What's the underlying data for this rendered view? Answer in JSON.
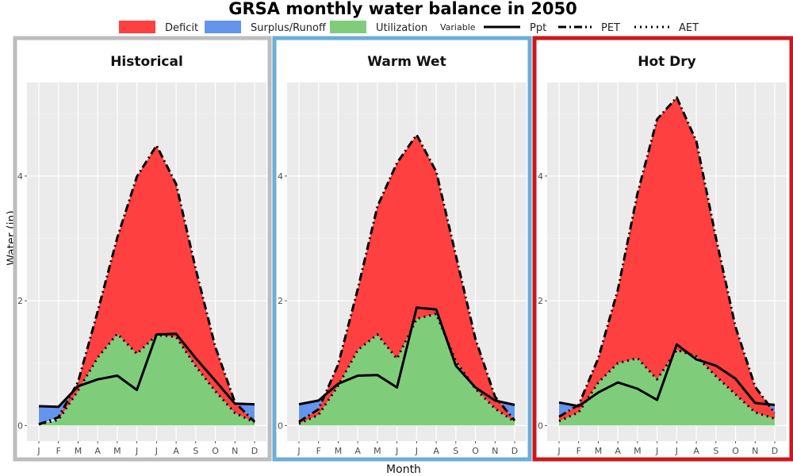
{
  "chart_data": {
    "type": "area",
    "title": "GRSA monthly water balance in 2050",
    "xlabel": "Month",
    "ylabel": "Water (in)",
    "categories": [
      "J",
      "F",
      "M",
      "A",
      "M",
      "J",
      "J",
      "A",
      "S",
      "O",
      "N",
      "D"
    ],
    "y_ticks": [
      "0",
      "2",
      "4"
    ],
    "ylim": [
      -0.25,
      5.5
    ],
    "grid": true,
    "legend": {
      "position": "top",
      "fill_items": [
        {
          "label": "Deficit",
          "color": "#ff4040"
        },
        {
          "label": "Surplus/Runoff",
          "color": "#6495ed"
        },
        {
          "label": "Utilization",
          "color": "#7fcd7b"
        }
      ],
      "variable_title": "Variable",
      "line_items": [
        {
          "label": "Ppt",
          "style": "solid"
        },
        {
          "label": "PET",
          "style": "dashdot"
        },
        {
          "label": "AET",
          "style": "dotted"
        }
      ]
    },
    "panels": [
      {
        "title": "Historical",
        "border_color": "#bdbdbd",
        "series": [
          {
            "name": "Ppt",
            "values": [
              0.31,
              0.3,
              0.63,
              0.74,
              0.8,
              0.57,
              1.46,
              1.47,
              1.08,
              0.72,
              0.35,
              0.34
            ]
          },
          {
            "name": "PET",
            "values": [
              0.02,
              0.13,
              0.7,
              1.83,
              3.01,
              3.99,
              4.49,
              3.87,
              2.51,
              1.26,
              0.37,
              0.06
            ]
          },
          {
            "name": "AET",
            "values": [
              0.02,
              0.09,
              0.56,
              1.09,
              1.47,
              1.15,
              1.45,
              1.42,
              0.95,
              0.55,
              0.2,
              0.05
            ]
          }
        ]
      },
      {
        "title": "Warm Wet",
        "border_color": "#6baed6",
        "series": [
          {
            "name": "Ppt",
            "values": [
              0.34,
              0.4,
              0.67,
              0.8,
              0.81,
              0.61,
              1.89,
              1.86,
              0.96,
              0.61,
              0.4,
              0.33
            ]
          },
          {
            "name": "PET",
            "values": [
              0.06,
              0.26,
              0.98,
              2.19,
              3.51,
              4.21,
              4.66,
              4.07,
              2.73,
              1.39,
              0.46,
              0.08
            ]
          },
          {
            "name": "AET",
            "values": [
              0.03,
              0.17,
              0.64,
              1.21,
              1.46,
              1.07,
              1.71,
              1.79,
              1.03,
              0.59,
              0.27,
              0.06
            ]
          }
        ]
      },
      {
        "title": "Hot Dry",
        "border_color": "#cb181d",
        "series": [
          {
            "name": "Ppt",
            "values": [
              0.37,
              0.31,
              0.53,
              0.69,
              0.59,
              0.41,
              1.3,
              1.06,
              0.96,
              0.75,
              0.36,
              0.33
            ]
          },
          {
            "name": "PET",
            "values": [
              0.14,
              0.33,
              1.08,
              2.18,
              3.72,
              4.91,
              5.26,
              4.56,
              3.01,
              1.58,
              0.62,
              0.2
            ]
          },
          {
            "name": "AET",
            "values": [
              0.07,
              0.21,
              0.69,
              1.0,
              1.08,
              0.74,
              1.21,
              1.11,
              0.79,
              0.5,
              0.21,
              0.11
            ]
          }
        ]
      }
    ]
  }
}
